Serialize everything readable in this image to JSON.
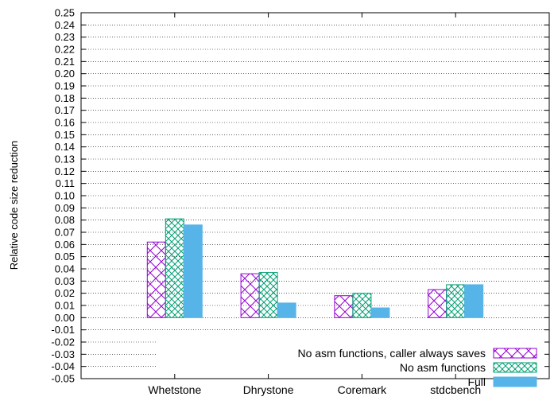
{
  "chart_data": {
    "type": "bar",
    "title": "",
    "xlabel": "",
    "ylabel": "Relative code size reduction",
    "ylim": [
      -0.05,
      0.25
    ],
    "ytick_step": 0.01,
    "grid": true,
    "legend_placement": "bottom-right",
    "categories": [
      "Whetstone",
      "Dhrystone",
      "Coremark",
      "stdcbench"
    ],
    "series": [
      {
        "name": "No asm functions, caller always saves",
        "values": [
          0.062,
          0.036,
          0.018,
          0.023
        ],
        "color": "#9400d3",
        "pattern": "crosshatch"
      },
      {
        "name": "No asm functions",
        "values": [
          0.081,
          0.037,
          0.02,
          0.027
        ],
        "color": "#009e73",
        "pattern": "fine-crosshatch"
      },
      {
        "name": "Full",
        "values": [
          0.076,
          0.012,
          0.008,
          0.027
        ],
        "color": "#56b4e9",
        "pattern": "solid"
      }
    ]
  }
}
